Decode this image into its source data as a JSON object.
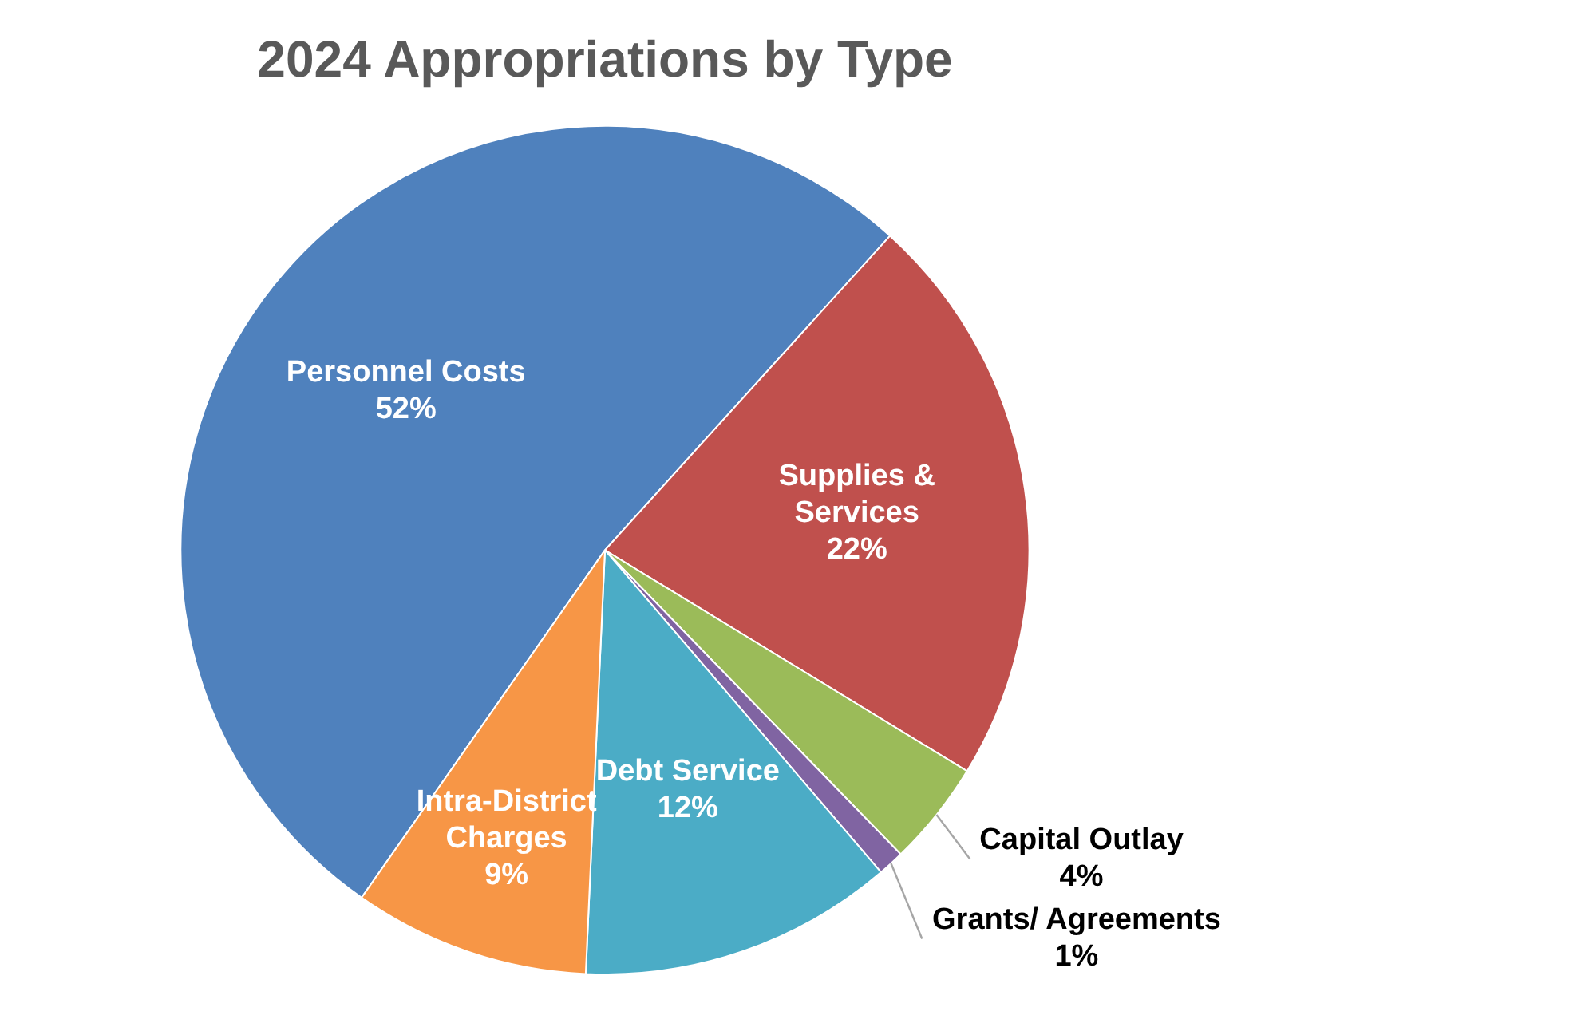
{
  "chart_data": {
    "type": "pie",
    "title": "2024 Appropriations by Type",
    "categories": [
      "Personnel Costs",
      "Supplies & Services",
      "Capital Outlay",
      "Grants/ Agreements",
      "Debt Service",
      "Intra-District Charges"
    ],
    "values": [
      52,
      22,
      4,
      1,
      12,
      9
    ],
    "colors": [
      "#4f81bd",
      "#c0504d",
      "#9bbb59",
      "#8064a2",
      "#4bacc6",
      "#f79646"
    ],
    "value_labels": [
      "52%",
      "22%",
      "4%",
      "1%",
      "12%",
      "9%"
    ],
    "legend": false
  }
}
